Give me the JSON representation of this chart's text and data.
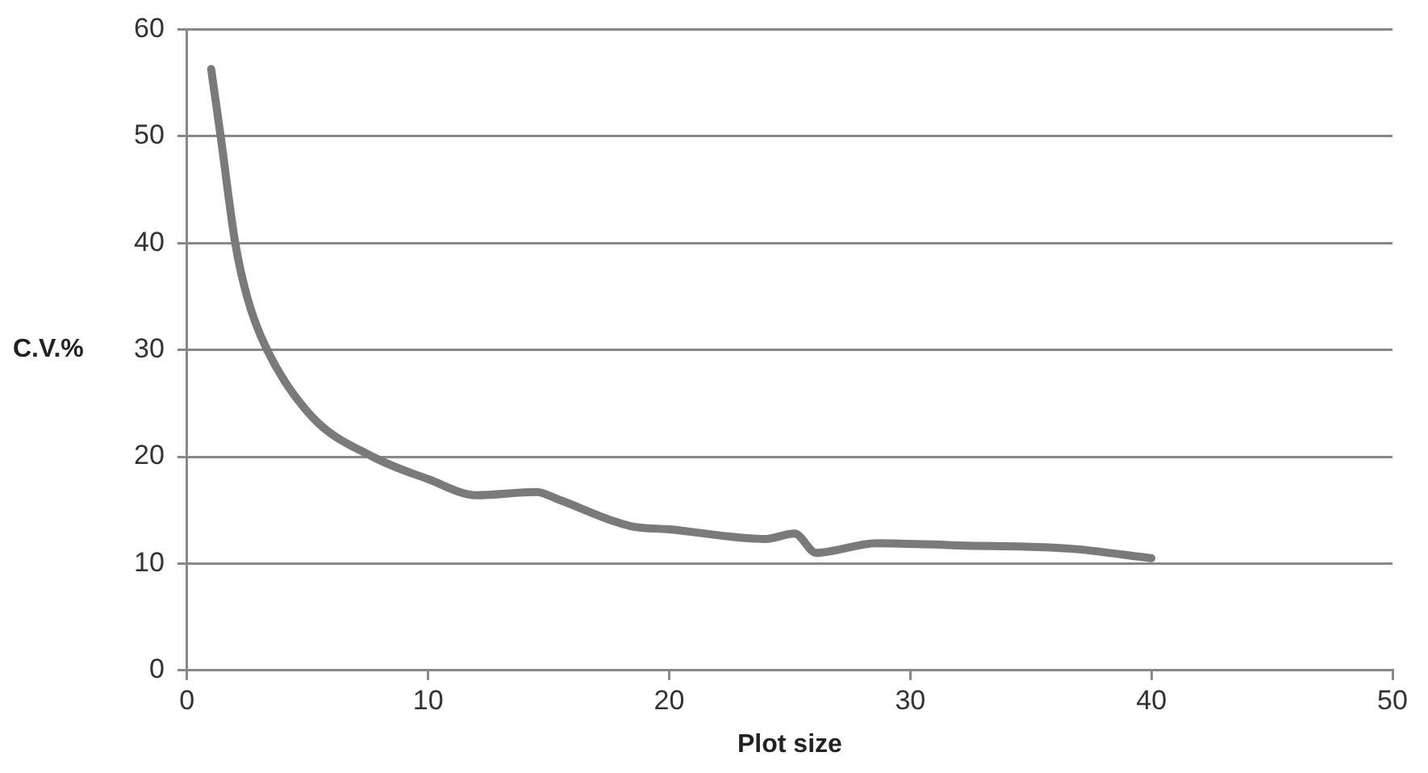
{
  "chart_data": {
    "type": "line",
    "xlabel": "Plot size",
    "ylabel": "C.V.%",
    "x": [
      1,
      1.4,
      2,
      2.5,
      3.3,
      5.2,
      7.7,
      10,
      12,
      14.5,
      15.4,
      18.4,
      20,
      24,
      25.2,
      26.1,
      28.6,
      32,
      36.6,
      40
    ],
    "series": [
      {
        "color": "#7a7a7a",
        "values": [
          56.3,
          49.9,
          40,
          34.9,
          30.1,
          23.7,
          20,
          17.9,
          16.4,
          16.7,
          16,
          13.5,
          13.2,
          12.3,
          12.8,
          11,
          11.9,
          11.7,
          11.4,
          10.5
        ]
      }
    ],
    "xlim": [
      0,
      50
    ],
    "xticks": [
      0,
      10,
      20,
      30,
      40,
      50
    ],
    "ylim": [
      0,
      60
    ],
    "yticks": [
      0,
      10,
      20,
      30,
      40,
      50,
      60
    ],
    "grid": "y",
    "legend": false,
    "marker": "none",
    "line_style": "solid"
  }
}
